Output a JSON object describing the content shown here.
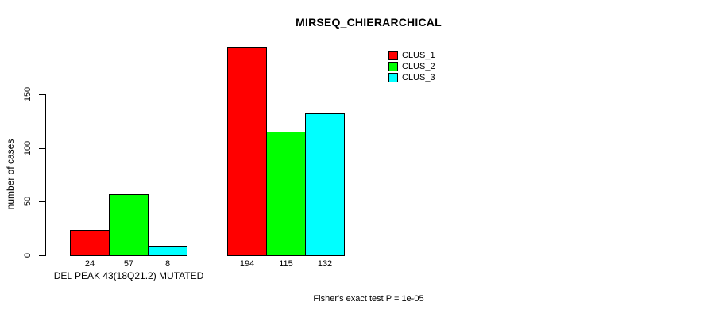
{
  "chart_data": {
    "type": "bar",
    "title": "MIRSEQ_CHIERARCHICAL",
    "ylabel": "number of cases",
    "xlabel": "DEL PEAK 43(18Q21.2) MUTATED",
    "footnote": "Fisher's exact test P = 1e-05",
    "ylim": [
      0,
      150
    ],
    "yticks": [
      0,
      50,
      100,
      150
    ],
    "grid": false,
    "legend_position": "top-right",
    "background_color": "#ffffff",
    "bar_outline_color": "#000000",
    "categories": [
      "DEL PEAK 43(18Q21.2) MUTATED",
      ""
    ],
    "series": [
      {
        "name": "CLUS_1",
        "color": "#ff0000",
        "values": [
          24,
          194
        ]
      },
      {
        "name": "CLUS_2",
        "color": "#00ff00",
        "values": [
          57,
          115
        ]
      },
      {
        "name": "CLUS_3",
        "color": "#00ffff",
        "values": [
          8,
          132
        ]
      }
    ],
    "bar_labels": [
      [
        24,
        57,
        8
      ],
      [
        194,
        115,
        132
      ]
    ]
  }
}
